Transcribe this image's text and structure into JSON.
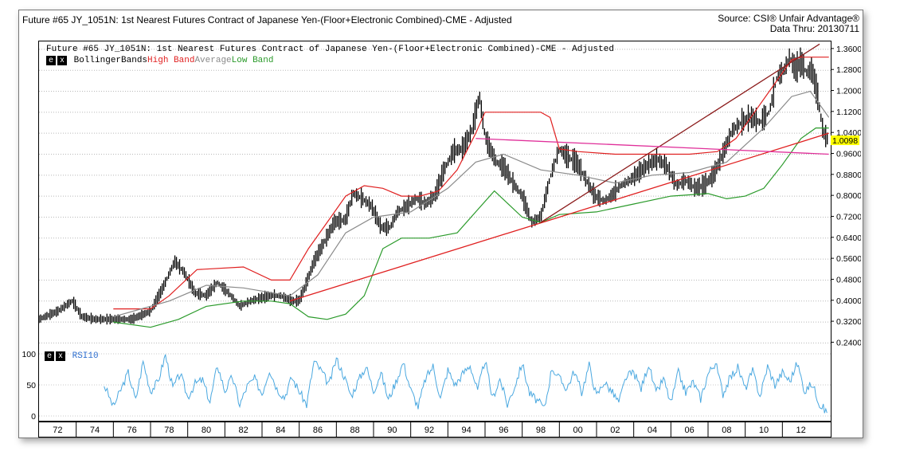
{
  "header": {
    "title": "Future #65 JY_1051N: 1st Nearest Futures Contract of Japanese Yen-(Floor+Electronic Combined)-CME - Adjusted",
    "source": "Source: CSI® Unfair Advantage®",
    "data_thru": "Data Thru: 20130711"
  },
  "price_panel": {
    "title": "Future #65 JY_1051N: 1st Nearest Futures Contract of Japanese Yen-(Floor+Electronic Combined)-CME -  Adjusted",
    "legend": {
      "e_button": "e",
      "x_button": "x",
      "indicator": "BollingerBands",
      "high": "High Band",
      "average": "Average",
      "low": "Low Band"
    },
    "last_value_label": "1.0098"
  },
  "rsi_panel": {
    "e_button": "e",
    "x_button": "x",
    "label": "RSI10"
  },
  "colors": {
    "price_bars": "#000000",
    "high_band": "#e02020",
    "average": "#8a8a8a",
    "low_band": "#2a9a2a",
    "trend_red": "#e02020",
    "trend_brown": "#8b1a1a",
    "trend_pink": "#e0309a",
    "rsi_line": "#4aa8e0",
    "rsi_label": "#3070d0",
    "last_value_bg": "#ffff00"
  },
  "chart_data": [
    {
      "type": "line",
      "subtype": "ohlc-bars",
      "title": "Future #65 JY_1051N: 1st Nearest Futures Contract of Japanese Yen-(Floor+Electronic Combined)-CME - Adjusted",
      "y_ticks": [
        "1.3600",
        "1.2800",
        "1.2000",
        "1.1200",
        "1.0400",
        "0.9600",
        "0.8800",
        "0.8000",
        "0.7200",
        "0.6400",
        "0.5600",
        "0.4800",
        "0.4000",
        "0.3200",
        "0.2400"
      ],
      "ylim": [
        0.22,
        1.39
      ],
      "x_ticks": [
        "72",
        "74",
        "76",
        "78",
        "80",
        "82",
        "84",
        "86",
        "88",
        "90",
        "92",
        "94",
        "96",
        "98",
        "00",
        "02",
        "04",
        "06",
        "08",
        "10",
        "12"
      ],
      "xlim": [
        1971.0,
        2013.6
      ],
      "grid": "horizontal dotted",
      "series": [
        {
          "name": "Price",
          "x": [
            1971.0,
            1972.0,
            1972.8,
            1973.3,
            1974.0,
            1975.0,
            1976.0,
            1977.0,
            1977.6,
            1978.3,
            1978.8,
            1979.4,
            1980.0,
            1980.6,
            1981.2,
            1981.8,
            1982.4,
            1982.9,
            1983.5,
            1984.0,
            1984.6,
            1985.0,
            1985.3,
            1985.8,
            1986.4,
            1986.9,
            1987.5,
            1987.9,
            1988.4,
            1988.9,
            1989.4,
            1989.9,
            1990.3,
            1990.8,
            1991.3,
            1991.8,
            1992.3,
            1992.8,
            1993.3,
            1993.8,
            1994.3,
            1994.7,
            1995.0,
            1995.2,
            1995.6,
            1996.0,
            1996.5,
            1997.0,
            1997.5,
            1998.0,
            1998.5,
            1999.0,
            1999.4,
            1999.9,
            2000.3,
            2000.9,
            2001.4,
            2001.8,
            2002.3,
            2002.8,
            2003.3,
            2003.8,
            2004.3,
            2004.8,
            2005.3,
            2005.8,
            2006.3,
            2006.8,
            2007.3,
            2007.8,
            2008.3,
            2008.8,
            2009.3,
            2009.8,
            2010.3,
            2010.7,
            2011.1,
            2011.4,
            2011.7,
            2012.0,
            2012.3,
            2012.6,
            2012.9,
            2013.2,
            2013.5
          ],
          "values": [
            0.33,
            0.36,
            0.4,
            0.34,
            0.33,
            0.33,
            0.33,
            0.36,
            0.44,
            0.55,
            0.51,
            0.43,
            0.42,
            0.47,
            0.43,
            0.38,
            0.4,
            0.41,
            0.42,
            0.42,
            0.4,
            0.4,
            0.45,
            0.55,
            0.63,
            0.7,
            0.71,
            0.81,
            0.79,
            0.76,
            0.68,
            0.68,
            0.74,
            0.76,
            0.79,
            0.77,
            0.8,
            0.9,
            0.97,
            0.98,
            1.05,
            1.18,
            1.03,
            0.99,
            0.93,
            0.91,
            0.85,
            0.8,
            0.7,
            0.72,
            0.87,
            0.98,
            0.95,
            0.93,
            0.88,
            0.8,
            0.78,
            0.8,
            0.84,
            0.86,
            0.89,
            0.92,
            0.94,
            0.91,
            0.84,
            0.86,
            0.83,
            0.84,
            0.88,
            0.96,
            1.05,
            1.08,
            1.1,
            1.08,
            1.12,
            1.25,
            1.28,
            1.33,
            1.28,
            1.31,
            1.27,
            1.28,
            1.18,
            1.04,
            1.01
          ]
        },
        {
          "name": "High Band",
          "x": [
            1975.0,
            1977.0,
            1978.0,
            1979.5,
            1982.0,
            1983.5,
            1984.5,
            1985.5,
            1986.5,
            1987.5,
            1988.5,
            1989.5,
            1990.5,
            1991.5,
            1992.5,
            1993.5,
            1994.5,
            1995.0,
            1996.0,
            1997.0,
            1998.0,
            1998.5,
            1999.0,
            2000.0,
            2002.0,
            2004.0,
            2006.0,
            2007.5,
            2008.5,
            2009.5,
            2010.5,
            2011.5,
            2012.0,
            2013.5
          ],
          "values": [
            0.37,
            0.37,
            0.42,
            0.52,
            0.53,
            0.48,
            0.48,
            0.6,
            0.7,
            0.8,
            0.84,
            0.83,
            0.8,
            0.8,
            0.82,
            0.9,
            1.04,
            1.12,
            1.12,
            1.12,
            1.12,
            1.1,
            0.98,
            0.97,
            0.96,
            0.96,
            0.96,
            0.97,
            1.02,
            1.12,
            1.22,
            1.32,
            1.33,
            1.33
          ]
        },
        {
          "name": "Average",
          "x": [
            1975.0,
            1978.0,
            1980.0,
            1982.0,
            1984.5,
            1986.0,
            1987.5,
            1989.0,
            1991.0,
            1993.0,
            1994.5,
            1996.0,
            1998.0,
            2000.0,
            2002.0,
            2004.0,
            2006.0,
            2008.0,
            2010.0,
            2011.5,
            2012.5,
            2013.5
          ],
          "values": [
            0.34,
            0.4,
            0.46,
            0.45,
            0.42,
            0.5,
            0.66,
            0.72,
            0.74,
            0.83,
            0.93,
            0.96,
            0.9,
            0.88,
            0.85,
            0.88,
            0.89,
            0.93,
            1.06,
            1.18,
            1.2,
            1.1
          ]
        },
        {
          "name": "Low Band",
          "x": [
            1975.0,
            1977.0,
            1978.5,
            1980.0,
            1982.0,
            1983.5,
            1984.5,
            1985.5,
            1986.5,
            1987.5,
            1988.5,
            1989.5,
            1990.5,
            1992.0,
            1993.5,
            1994.5,
            1995.5,
            1997.0,
            1998.0,
            1999.0,
            2001.0,
            2003.0,
            2005.0,
            2007.0,
            2008.0,
            2009.0,
            2010.0,
            2011.0,
            2012.0,
            2012.8,
            2013.5
          ],
          "values": [
            0.32,
            0.3,
            0.33,
            0.38,
            0.4,
            0.4,
            0.39,
            0.34,
            0.33,
            0.35,
            0.42,
            0.6,
            0.64,
            0.64,
            0.66,
            0.74,
            0.82,
            0.72,
            0.7,
            0.73,
            0.74,
            0.77,
            0.8,
            0.81,
            0.79,
            0.8,
            0.83,
            0.92,
            1.02,
            1.06,
            1.06
          ]
        },
        {
          "name": "Trendline Red",
          "x": [
            1984.5,
            2013.5
          ],
          "values": [
            0.4,
            1.04
          ]
        },
        {
          "name": "Trendline Brown",
          "x": [
            1998.0,
            2013.0
          ],
          "values": [
            0.7,
            1.38
          ]
        },
        {
          "name": "Trendline Pink",
          "x": [
            1994.5,
            2013.5
          ],
          "values": [
            1.02,
            0.96
          ]
        }
      ]
    },
    {
      "type": "line",
      "title": "RSI10",
      "y_ticks": [
        "100",
        "50",
        "0"
      ],
      "ylim": [
        0,
        100
      ],
      "series": [
        {
          "name": "RSI10",
          "x": [
            1974.5,
            1975.0,
            1975.4,
            1975.8,
            1976.2,
            1976.6,
            1977.0,
            1977.4,
            1977.8,
            1978.2,
            1978.6,
            1979.0,
            1979.4,
            1979.8,
            1980.2,
            1980.6,
            1981.0,
            1981.4,
            1981.8,
            1982.2,
            1982.6,
            1983.0,
            1983.4,
            1983.8,
            1984.2,
            1984.6,
            1985.0,
            1985.4,
            1985.8,
            1986.2,
            1986.6,
            1987.0,
            1987.4,
            1987.8,
            1988.2,
            1988.6,
            1989.0,
            1989.4,
            1989.8,
            1990.2,
            1990.6,
            1991.0,
            1991.4,
            1991.8,
            1992.2,
            1992.6,
            1993.0,
            1993.4,
            1993.8,
            1994.2,
            1994.6,
            1995.0,
            1995.4,
            1995.8,
            1996.2,
            1996.6,
            1997.0,
            1997.4,
            1997.8,
            1998.2,
            1998.6,
            1999.0,
            1999.4,
            1999.8,
            2000.2,
            2000.6,
            2001.0,
            2001.4,
            2001.8,
            2002.2,
            2002.6,
            2003.0,
            2003.4,
            2003.8,
            2004.2,
            2004.6,
            2005.0,
            2005.4,
            2005.8,
            2006.2,
            2006.6,
            2007.0,
            2007.4,
            2007.8,
            2008.2,
            2008.6,
            2009.0,
            2009.4,
            2009.8,
            2010.2,
            2010.6,
            2011.0,
            2011.4,
            2011.8,
            2012.2,
            2012.6,
            2013.0,
            2013.4
          ],
          "values": [
            50,
            15,
            42,
            70,
            25,
            88,
            40,
            55,
            98,
            45,
            68,
            30,
            52,
            58,
            22,
            82,
            40,
            63,
            18,
            48,
            60,
            36,
            75,
            44,
            30,
            62,
            40,
            18,
            88,
            72,
            50,
            92,
            65,
            32,
            58,
            80,
            40,
            70,
            26,
            55,
            86,
            42,
            15,
            60,
            80,
            28,
            74,
            50,
            68,
            82,
            40,
            90,
            28,
            60,
            18,
            48,
            85,
            36,
            25,
            12,
            78,
            60,
            44,
            72,
            38,
            82,
            32,
            55,
            40,
            22,
            63,
            70,
            44,
            84,
            36,
            60,
            20,
            70,
            38,
            55,
            28,
            68,
            86,
            36,
            62,
            78,
            44,
            72,
            32,
            80,
            50,
            70,
            56,
            85,
            40,
            52,
            20,
            5
          ]
        }
      ]
    }
  ]
}
